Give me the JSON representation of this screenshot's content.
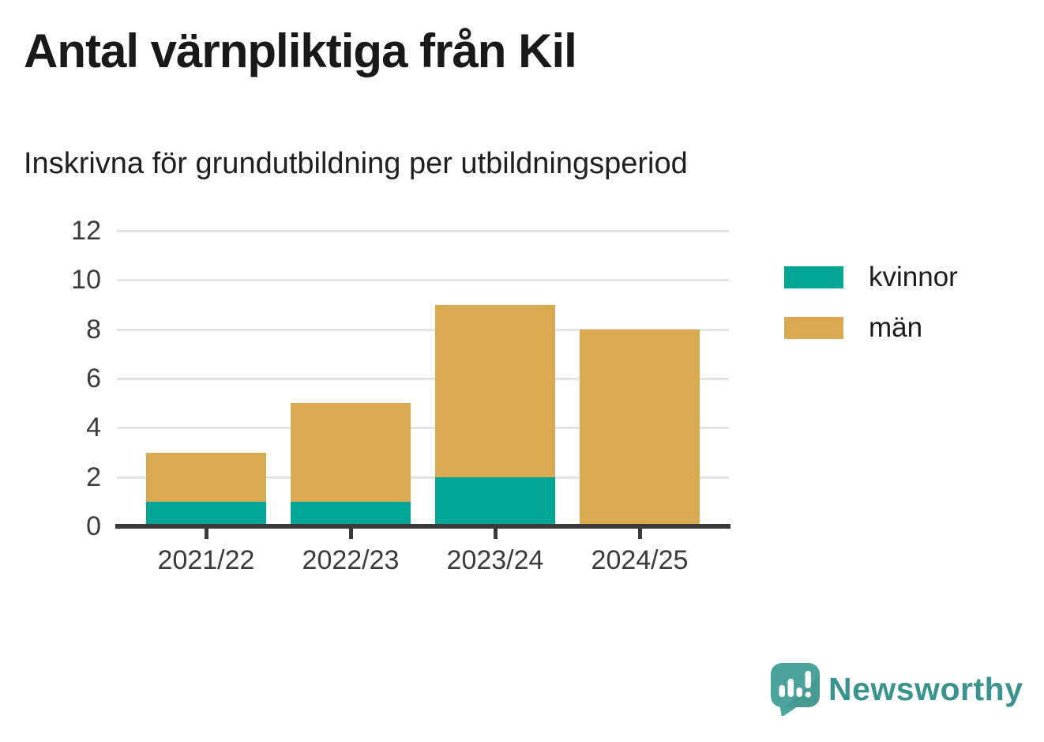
{
  "chart_data": {
    "type": "bar",
    "stacked": true,
    "title": "Antal värnpliktiga från Kil",
    "subtitle": "Inskrivna för grundutbildning per utbildningsperiod",
    "categories": [
      "2021/22",
      "2022/23",
      "2023/24",
      "2024/25"
    ],
    "series": [
      {
        "name": "kvinnor",
        "color": "#00a596",
        "values": [
          1,
          1,
          2,
          0
        ]
      },
      {
        "name": "män",
        "color": "#d9aa52",
        "values": [
          2,
          4,
          7,
          8
        ]
      }
    ],
    "ylim": [
      0,
      12
    ],
    "yticks": [
      0,
      2,
      4,
      6,
      8,
      10,
      12
    ],
    "xlabel": "",
    "ylabel": "",
    "grid": true,
    "legend_position": "right"
  },
  "style": {
    "grid_color": "#e4e4e4",
    "axis_color": "#3a3a3a",
    "title_color": "#191919",
    "tick_label_color": "#3b3b3b"
  },
  "branding": {
    "name": "Newsworthy",
    "wordmark_color": "#3a948d",
    "icon_color": "#4ba49c"
  }
}
